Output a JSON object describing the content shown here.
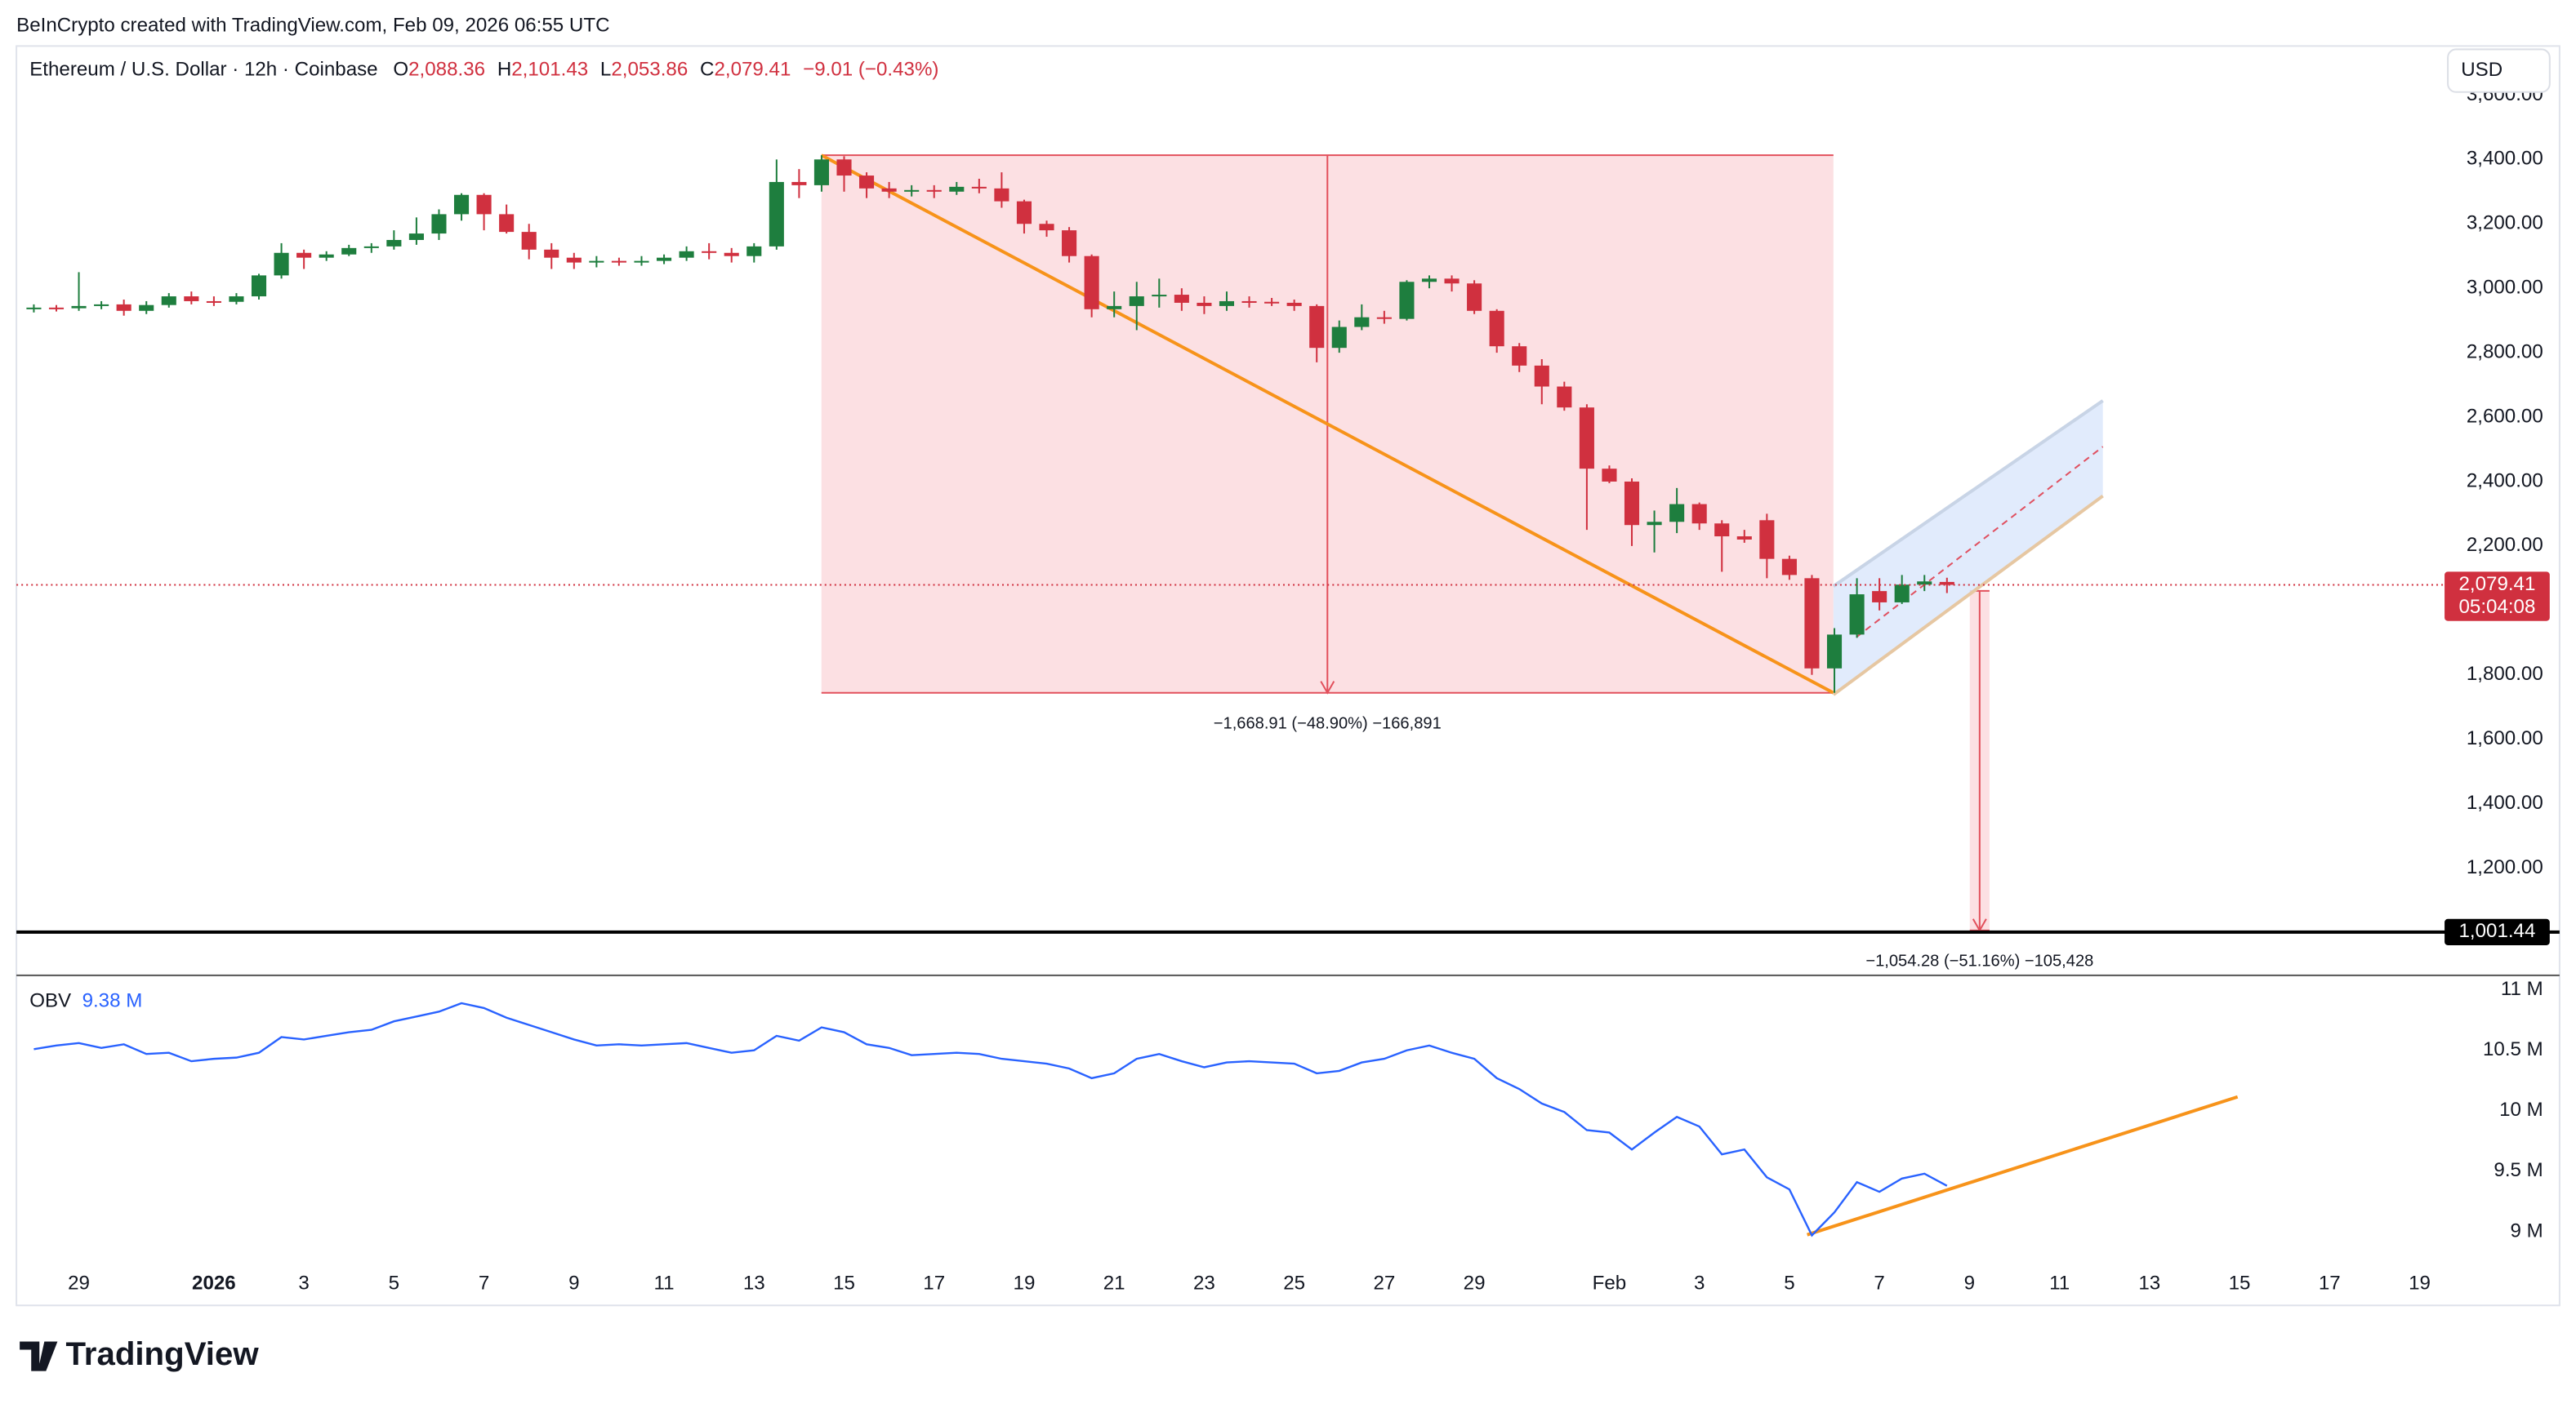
{
  "header": {
    "credit": "BeInCrypto created with TradingView.com, Feb 09, 2026 06:55 UTC",
    "symbol": "Ethereum / U.S. Dollar · 12h · Coinbase",
    "ohlc": [
      {
        "key": "O",
        "value": "2,088.36"
      },
      {
        "key": "H",
        "value": "2,101.43"
      },
      {
        "key": "L",
        "value": "2,053.86"
      },
      {
        "key": "C",
        "value": "2,079.41"
      }
    ],
    "change": "−9.01 (−0.43%)"
  },
  "currency": "USD",
  "brand": "TradingView",
  "chart_data": [
    {
      "type": "candlestick",
      "up_color": "#1e7e3e",
      "down_color": "#d0303f",
      "categories": [
        null,
        null,
        "29",
        null,
        null,
        null,
        null,
        null,
        "2026",
        null,
        null,
        null,
        "3",
        null,
        null,
        null,
        "5",
        null,
        null,
        null,
        "7",
        null,
        null,
        null,
        "9",
        null,
        null,
        null,
        "11",
        null,
        null,
        null,
        "13",
        null,
        null,
        null,
        "15",
        null,
        null,
        null,
        "17",
        null,
        null,
        null,
        "19",
        null,
        null,
        null,
        "21",
        null,
        null,
        null,
        "23",
        null,
        null,
        null,
        "25",
        null,
        null,
        null,
        "27",
        null,
        null,
        null,
        "29",
        null,
        null,
        null,
        null,
        null,
        "Feb",
        null,
        null,
        null,
        "3",
        null,
        null,
        null,
        "5",
        null,
        null,
        null,
        "7",
        null,
        null,
        null,
        "9",
        null,
        null,
        null,
        "11",
        null,
        null,
        null,
        "13",
        null,
        null,
        null,
        "15",
        null,
        null,
        null,
        "17",
        null,
        null,
        null,
        "19",
        null,
        null
      ],
      "open": [
        2935,
        2940,
        2938,
        2945,
        2950,
        2930,
        2948,
        2975,
        2960,
        2958,
        2975,
        3040,
        3110,
        3095,
        3105,
        3125,
        3130,
        3150,
        3170,
        3230,
        3290,
        3230,
        3175,
        3120,
        3095,
        3080,
        3085,
        3082,
        3085,
        3095,
        3115,
        3110,
        3100,
        3130,
        3330,
        3320,
        3400,
        3350,
        3310,
        3300,
        3305,
        3300,
        3315,
        3310,
        3270,
        3200,
        3180,
        3100,
        2935,
        2945,
        2975,
        2980,
        2955,
        2945,
        2960,
        2958,
        2955,
        2945,
        2815,
        2880,
        2910,
        2905,
        3020,
        3030,
        3015,
        2930,
        2820,
        2760,
        2695,
        2630,
        2440,
        2400,
        2265,
        2275,
        2330,
        2270,
        2230,
        2280,
        2160,
        2100,
        1820,
        1925,
        2060,
        2025,
        2080,
        2088.36,
        null,
        null,
        null,
        null,
        null,
        null,
        null,
        null,
        null,
        null,
        null,
        null,
        null,
        null,
        null,
        null,
        null,
        null,
        null,
        null,
        null,
        null,
        null
      ],
      "high": [
        2950,
        2948,
        3050,
        2960,
        2965,
        2960,
        2985,
        2990,
        2975,
        2985,
        3045,
        3140,
        3120,
        3115,
        3135,
        3140,
        3180,
        3220,
        3245,
        3295,
        3295,
        3260,
        3200,
        3140,
        3110,
        3100,
        3095,
        3100,
        3105,
        3130,
        3140,
        3125,
        3140,
        3400,
        3370,
        3413,
        3410,
        3360,
        3330,
        3320,
        3320,
        3330,
        3340,
        3360,
        3275,
        3210,
        3190,
        3105,
        2990,
        3020,
        3030,
        3000,
        2975,
        2990,
        2975,
        2970,
        2965,
        2950,
        2900,
        2950,
        2930,
        3025,
        3040,
        3040,
        3025,
        2935,
        2830,
        2780,
        2710,
        2640,
        2450,
        2410,
        2310,
        2380,
        2335,
        2280,
        2250,
        2300,
        2170,
        2110,
        1945,
        2100,
        2100,
        2110,
        2110,
        2101.43,
        null,
        null,
        null,
        null,
        null,
        null,
        null,
        null,
        null,
        null,
        null,
        null,
        null,
        null,
        null,
        null,
        null,
        null,
        null,
        null,
        null,
        null,
        null
      ],
      "low": [
        2925,
        2928,
        2930,
        2935,
        2915,
        2920,
        2940,
        2950,
        2945,
        2950,
        2965,
        3030,
        3060,
        3085,
        3100,
        3110,
        3120,
        3135,
        3150,
        3210,
        3180,
        3170,
        3090,
        3060,
        3060,
        3065,
        3070,
        3070,
        3075,
        3085,
        3090,
        3080,
        3080,
        3120,
        3280,
        3300,
        3300,
        3280,
        3280,
        3285,
        3280,
        3290,
        3295,
        3250,
        3170,
        3160,
        3080,
        2910,
        2910,
        2870,
        2940,
        2930,
        2920,
        2930,
        2940,
        2945,
        2930,
        2770,
        2800,
        2870,
        2890,
        2900,
        3000,
        2990,
        2920,
        2800,
        2740,
        2640,
        2620,
        2250,
        2395,
        2200,
        2180,
        2240,
        2250,
        2120,
        2210,
        2100,
        2095,
        1800,
        1744.2,
        1915,
        2000,
        2020,
        2060,
        2053.86,
        null,
        null,
        null,
        null,
        null,
        null,
        null,
        null,
        null,
        null,
        null,
        null,
        null,
        null,
        null,
        null,
        null,
        null,
        null,
        null,
        null,
        null,
        null
      ],
      "close": [
        2940,
        2938,
        2945,
        2950,
        2930,
        2948,
        2975,
        2960,
        2958,
        2975,
        3040,
        3110,
        3095,
        3105,
        3125,
        3130,
        3150,
        3170,
        3230,
        3290,
        3230,
        3175,
        3120,
        3095,
        3080,
        3085,
        3082,
        3085,
        3095,
        3115,
        3110,
        3100,
        3130,
        3330,
        3320,
        3400,
        3350,
        3310,
        3300,
        3305,
        3300,
        3315,
        3310,
        3270,
        3200,
        3180,
        3100,
        2935,
        2945,
        2975,
        2980,
        2955,
        2945,
        2960,
        2958,
        2955,
        2945,
        2815,
        2880,
        2910,
        2905,
        3020,
        3030,
        3015,
        2930,
        2820,
        2760,
        2695,
        2630,
        2440,
        2400,
        2265,
        2275,
        2330,
        2270,
        2230,
        2220,
        2160,
        2110,
        1820,
        1925,
        2050,
        2025,
        2080,
        2090,
        2079.41,
        null,
        null,
        null,
        null,
        null,
        null,
        null,
        null,
        null,
        null,
        null,
        null,
        null,
        null,
        null,
        null,
        null,
        null,
        null,
        null,
        null,
        null,
        null
      ],
      "ylim": [
        867,
        3752
      ],
      "yticks": [
        {
          "value": 3600,
          "label": "3,600.00"
        },
        {
          "value": 3400,
          "label": "3,400.00"
        },
        {
          "value": 3200,
          "label": "3,200.00"
        },
        {
          "value": 3000,
          "label": "3,000.00"
        },
        {
          "value": 2800,
          "label": "2,800.00"
        },
        {
          "value": 2600,
          "label": "2,600.00"
        },
        {
          "value": 2400,
          "label": "2,400.00"
        },
        {
          "value": 2200,
          "label": "2,200.00"
        },
        {
          "value": 1800,
          "label": "1,800.00"
        },
        {
          "value": 1600,
          "label": "1,600.00"
        },
        {
          "value": 1400,
          "label": "1,400.00"
        },
        {
          "value": 1200,
          "label": "1,200.00"
        }
      ],
      "last_price": {
        "value": 2079.41,
        "label": "2,079.41",
        "countdown": "05:04:08"
      },
      "levels": [
        {
          "value": 1001.44,
          "label": "1,001.44"
        }
      ],
      "measures": [
        {
          "from": 3413.1,
          "to": 1744.2,
          "label": "−1,668.91 (−48.90%) −166,891"
        },
        {
          "from": 2060.75,
          "to": 1006.47,
          "label": "−1,054.28 (−51.16%) −105,428"
        }
      ]
    },
    {
      "type": "line",
      "series": [
        {
          "name": "OBV",
          "color": "#2962ff",
          "value_label": "9.38 M",
          "values": [
            10.51,
            10.54,
            10.56,
            10.52,
            10.55,
            10.47,
            10.48,
            10.41,
            10.43,
            10.44,
            10.48,
            10.61,
            10.59,
            10.62,
            10.65,
            10.67,
            10.74,
            10.78,
            10.82,
            10.89,
            10.85,
            10.77,
            10.71,
            10.65,
            10.59,
            10.54,
            10.55,
            10.54,
            10.55,
            10.56,
            10.52,
            10.48,
            10.5,
            10.62,
            10.58,
            10.69,
            10.65,
            10.55,
            10.52,
            10.46,
            10.47,
            10.48,
            10.47,
            10.43,
            10.41,
            10.39,
            10.35,
            10.27,
            10.31,
            10.43,
            10.47,
            10.41,
            10.36,
            10.4,
            10.41,
            10.4,
            10.39,
            10.31,
            10.33,
            10.4,
            10.43,
            10.5,
            10.54,
            10.48,
            10.43,
            10.27,
            10.18,
            10.06,
            9.99,
            9.84,
            9.82,
            9.68,
            9.82,
            9.95,
            9.87,
            9.64,
            9.68,
            9.45,
            9.35,
            8.97,
            9.16,
            9.41,
            9.33,
            9.44,
            9.48,
            9.38,
            null,
            null,
            null,
            null,
            null,
            null,
            null,
            null,
            null,
            null,
            null,
            null,
            null,
            null,
            null,
            null,
            null,
            null,
            null,
            null,
            null,
            null,
            null
          ]
        }
      ],
      "ylim": [
        8.73,
        11.12
      ],
      "yticks": [
        {
          "value": 11,
          "label": "11 M"
        },
        {
          "value": 10.5,
          "label": "10.5 M"
        },
        {
          "value": 10,
          "label": "10 M"
        },
        {
          "value": 9.5,
          "label": "9.5 M"
        },
        {
          "value": 9,
          "label": "9 M"
        }
      ]
    }
  ]
}
